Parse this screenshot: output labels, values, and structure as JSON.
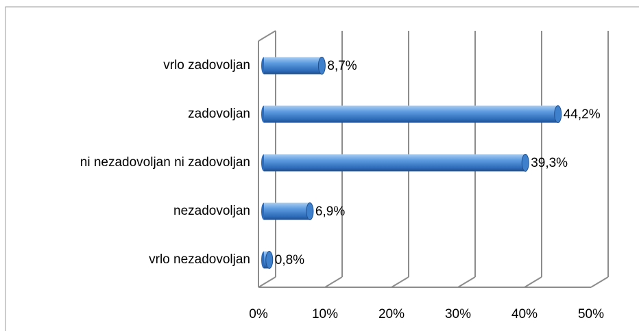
{
  "chart_data": {
    "type": "bar",
    "orientation": "horizontal",
    "three_d": true,
    "categories": [
      "vrlo zadovoljan",
      "zadovoljan",
      "ni nezadovoljan ni zadovoljan",
      "nezadovoljan",
      "vrlo nezadovoljan"
    ],
    "values": [
      8.7,
      44.2,
      39.3,
      6.9,
      0.8
    ],
    "value_labels": [
      "8,7%",
      "44,2%",
      "39,3%",
      "6,9%",
      "0,8%"
    ],
    "color": "#4f8fd8",
    "xlim": [
      0,
      50
    ],
    "xticks": [
      {
        "value": 0,
        "label": "0%"
      },
      {
        "value": 10,
        "label": "10%"
      },
      {
        "value": 20,
        "label": "20%"
      },
      {
        "value": 30,
        "label": "30%"
      },
      {
        "value": 40,
        "label": "40%"
      },
      {
        "value": 50,
        "label": "50%"
      }
    ],
    "grid": true
  }
}
